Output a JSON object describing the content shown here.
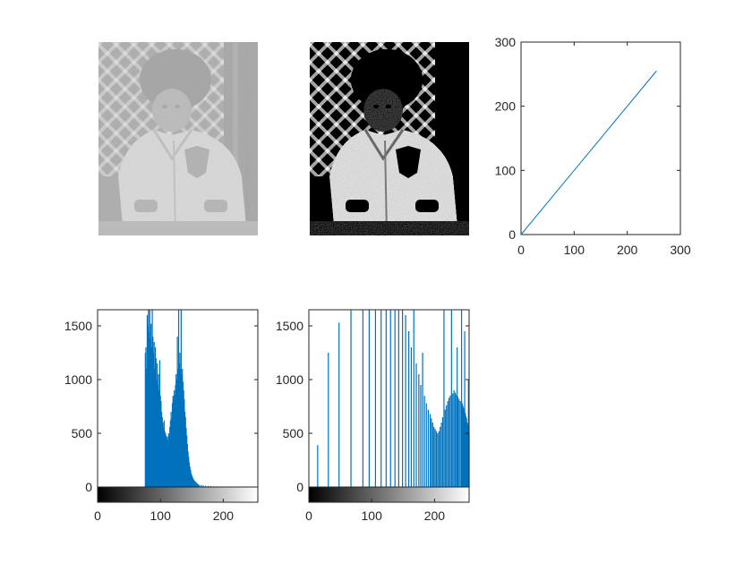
{
  "figure": {
    "images": [
      {
        "name": "original-grayscale-image",
        "description_icon": "photo-icon",
        "gray_range": [
          75,
          160
        ]
      },
      {
        "name": "histogram-equalized-image",
        "description_icon": "photo-icon",
        "gray_range": [
          0,
          255
        ]
      }
    ]
  },
  "chart_data": [
    {
      "type": "line",
      "panel": "transform-curve",
      "title": "",
      "xlabel": "",
      "ylabel": "",
      "xlim": [
        0,
        300
      ],
      "ylim": [
        0,
        300
      ],
      "xticks": [
        "0",
        "100",
        "200",
        "300"
      ],
      "yticks": [
        "0",
        "100",
        "200",
        "300"
      ],
      "grid": false,
      "series": [
        {
          "color": "#0072BD",
          "x": [
            0,
            255
          ],
          "y": [
            0,
            255
          ]
        }
      ]
    },
    {
      "type": "bar",
      "panel": "histogram-original",
      "title": "",
      "xlabel": "",
      "ylabel": "",
      "xlim": [
        0,
        255
      ],
      "ylim": [
        0,
        1650
      ],
      "xticks": [
        "0",
        "100",
        "200"
      ],
      "yticks": [
        "0",
        "500",
        "1000",
        "1500"
      ],
      "grid": false,
      "colorbar": true,
      "color": "#0072BD",
      "bins": [
        [
          76,
          1250
        ],
        [
          77,
          1300
        ],
        [
          78,
          1100
        ],
        [
          79,
          1600
        ],
        [
          80,
          1500
        ],
        [
          81,
          1650
        ],
        [
          82,
          1450
        ],
        [
          83,
          1650
        ],
        [
          84,
          1380
        ],
        [
          85,
          1520
        ],
        [
          86,
          1300
        ],
        [
          87,
          1650
        ],
        [
          88,
          1400
        ],
        [
          89,
          1250
        ],
        [
          90,
          1350
        ],
        [
          91,
          1100
        ],
        [
          92,
          1300
        ],
        [
          93,
          1200
        ],
        [
          94,
          1000
        ],
        [
          95,
          1150
        ],
        [
          96,
          950
        ],
        [
          97,
          1050
        ],
        [
          98,
          900
        ],
        [
          99,
          1180
        ],
        [
          100,
          850
        ],
        [
          101,
          800
        ],
        [
          102,
          700
        ],
        [
          103,
          650
        ],
        [
          104,
          600
        ],
        [
          105,
          550
        ],
        [
          106,
          620
        ],
        [
          107,
          520
        ],
        [
          108,
          500
        ],
        [
          109,
          480
        ],
        [
          110,
          450
        ],
        [
          111,
          470
        ],
        [
          112,
          430
        ],
        [
          113,
          500
        ],
        [
          114,
          480
        ],
        [
          115,
          560
        ],
        [
          116,
          620
        ],
        [
          117,
          700
        ],
        [
          118,
          640
        ],
        [
          119,
          780
        ],
        [
          120,
          850
        ],
        [
          121,
          820
        ],
        [
          122,
          900
        ],
        [
          123,
          860
        ],
        [
          124,
          950
        ],
        [
          125,
          1050
        ],
        [
          126,
          1000
        ],
        [
          127,
          1400
        ],
        [
          128,
          1100
        ],
        [
          129,
          1650
        ],
        [
          130,
          1150
        ],
        [
          131,
          1250
        ],
        [
          132,
          1100
        ],
        [
          133,
          1650
        ],
        [
          134,
          1050
        ],
        [
          135,
          1100
        ],
        [
          136,
          980
        ],
        [
          137,
          900
        ],
        [
          138,
          820
        ],
        [
          139,
          700
        ],
        [
          140,
          650
        ],
        [
          141,
          550
        ],
        [
          142,
          480
        ],
        [
          143,
          400
        ],
        [
          144,
          330
        ],
        [
          145,
          280
        ],
        [
          146,
          230
        ],
        [
          147,
          190
        ],
        [
          148,
          160
        ],
        [
          149,
          130
        ],
        [
          150,
          110
        ],
        [
          151,
          95
        ],
        [
          152,
          80
        ],
        [
          153,
          70
        ],
        [
          154,
          60
        ],
        [
          155,
          55
        ],
        [
          156,
          48
        ],
        [
          157,
          40
        ],
        [
          158,
          35
        ],
        [
          159,
          30
        ],
        [
          160,
          25
        ],
        [
          162,
          20
        ],
        [
          165,
          18
        ],
        [
          168,
          15
        ],
        [
          172,
          12
        ],
        [
          176,
          10
        ],
        [
          180,
          8
        ],
        [
          185,
          7
        ],
        [
          190,
          6
        ],
        [
          196,
          5
        ],
        [
          202,
          4
        ],
        [
          210,
          4
        ],
        [
          220,
          3
        ],
        [
          232,
          3
        ],
        [
          245,
          2
        ]
      ]
    },
    {
      "type": "bar",
      "panel": "histogram-equalized",
      "title": "",
      "xlabel": "",
      "ylabel": "",
      "xlim": [
        0,
        255
      ],
      "ylim": [
        0,
        1650
      ],
      "xticks": [
        "0",
        "100",
        "200"
      ],
      "yticks": [
        "0",
        "500",
        "1000",
        "1500"
      ],
      "grid": false,
      "colorbar": true,
      "color": "#0072BD",
      "bins": [
        [
          14,
          390
        ],
        [
          31,
          1250
        ],
        [
          48,
          1530
        ],
        [
          67,
          1650
        ],
        [
          86,
          1650
        ],
        [
          96,
          1650
        ],
        [
          106,
          1650
        ],
        [
          115,
          1650
        ],
        [
          123,
          1650
        ],
        [
          130,
          1650
        ],
        [
          137,
          1650
        ],
        [
          143,
          1650
        ],
        [
          149,
          1650
        ],
        [
          154,
          1600
        ],
        [
          159,
          1450
        ],
        [
          163,
          1300
        ],
        [
          167,
          1650
        ],
        [
          171,
          1150
        ],
        [
          175,
          1050
        ],
        [
          178,
          950
        ],
        [
          181,
          1250
        ],
        [
          184,
          850
        ],
        [
          187,
          780
        ],
        [
          190,
          720
        ],
        [
          193,
          680
        ],
        [
          195,
          640
        ],
        [
          197,
          600
        ],
        [
          199,
          560
        ],
        [
          201,
          540
        ],
        [
          203,
          520
        ],
        [
          205,
          500
        ],
        [
          207,
          520
        ],
        [
          209,
          560
        ],
        [
          211,
          600
        ],
        [
          213,
          650
        ],
        [
          215,
          1650
        ],
        [
          217,
          720
        ],
        [
          219,
          760
        ],
        [
          221,
          800
        ],
        [
          223,
          830
        ],
        [
          225,
          850
        ],
        [
          227,
          1650
        ],
        [
          229,
          870
        ],
        [
          231,
          900
        ],
        [
          233,
          880
        ],
        [
          235,
          860
        ],
        [
          236,
          1300
        ],
        [
          237,
          840
        ],
        [
          239,
          820
        ],
        [
          241,
          800
        ],
        [
          243,
          1650
        ],
        [
          244,
          780
        ],
        [
          245,
          760
        ],
        [
          246,
          740
        ],
        [
          247,
          720
        ],
        [
          248,
          1450
        ],
        [
          249,
          690
        ],
        [
          250,
          660
        ],
        [
          251,
          640
        ],
        [
          252,
          600
        ],
        [
          253,
          580
        ],
        [
          254,
          1000
        ],
        [
          255,
          500
        ]
      ]
    }
  ]
}
